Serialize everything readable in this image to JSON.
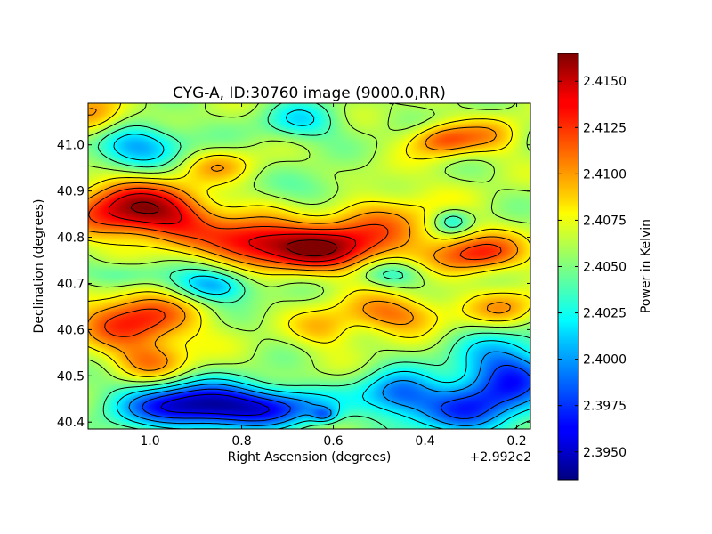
{
  "chart_data": {
    "type": "heatmap",
    "title": "CYG-A, ID:30760 image (9000.0,RR)",
    "xlabel": "Right Ascension (degrees)",
    "ylabel": "Declination (degrees)",
    "x_offset_label": "+2.992e2",
    "xlim": [
      1.135,
      0.17
    ],
    "ylim": [
      40.385,
      41.09
    ],
    "x_ticks": [
      1.0,
      0.8,
      0.6,
      0.4,
      0.2
    ],
    "x_tick_labels": [
      "1.0",
      "0.8",
      "0.6",
      "0.4",
      "0.2"
    ],
    "y_ticks": [
      40.4,
      40.5,
      40.6,
      40.7,
      40.8,
      40.9,
      41.0
    ],
    "y_tick_labels": [
      "40.4",
      "40.5",
      "40.6",
      "40.7",
      "40.8",
      "40.9",
      "41.0"
    ],
    "colormap": "jet",
    "contours": true,
    "colorbar": {
      "label": "Power in Kelvin",
      "range": [
        2.3935,
        2.4165
      ],
      "ticks": [
        2.395,
        2.3975,
        2.4,
        2.4025,
        2.405,
        2.4075,
        2.41,
        2.4125,
        2.415
      ],
      "tick_labels": [
        "2.3950",
        "2.3975",
        "2.4000",
        "2.4025",
        "2.4050",
        "2.4075",
        "2.4100",
        "2.4125",
        "2.4150"
      ]
    },
    "base_value": 2.406,
    "features": [
      {
        "x": 1.05,
        "y": 40.86,
        "amp": 0.0085,
        "sx": 0.09,
        "sy": 0.045
      },
      {
        "x": 0.93,
        "y": 40.845,
        "amp": 0.0045,
        "sx": 0.07,
        "sy": 0.04
      },
      {
        "x": 0.64,
        "y": 40.775,
        "amp": 0.008,
        "sx": 0.1,
        "sy": 0.035
      },
      {
        "x": 0.79,
        "y": 40.79,
        "amp": 0.006,
        "sx": 0.07,
        "sy": 0.035
      },
      {
        "x": 0.28,
        "y": 40.765,
        "amp": 0.0065,
        "sx": 0.07,
        "sy": 0.03
      },
      {
        "x": 1.03,
        "y": 40.62,
        "amp": 0.007,
        "sx": 0.09,
        "sy": 0.045
      },
      {
        "x": 0.47,
        "y": 40.635,
        "amp": 0.005,
        "sx": 0.08,
        "sy": 0.03
      },
      {
        "x": 0.22,
        "y": 40.645,
        "amp": 0.004,
        "sx": 0.06,
        "sy": 0.03
      },
      {
        "x": 0.62,
        "y": 40.6,
        "amp": 0.003,
        "sx": 0.05,
        "sy": 0.03
      },
      {
        "x": 1.0,
        "y": 40.53,
        "amp": 0.004,
        "sx": 0.06,
        "sy": 0.03
      },
      {
        "x": 0.52,
        "y": 40.83,
        "amp": 0.004,
        "sx": 0.12,
        "sy": 0.06
      },
      {
        "x": 0.85,
        "y": 40.955,
        "amp": 0.003,
        "sx": 0.06,
        "sy": 0.025
      },
      {
        "x": 1.12,
        "y": 41.06,
        "amp": 0.0055,
        "sx": 0.05,
        "sy": 0.035
      },
      {
        "x": 0.36,
        "y": 41.01,
        "amp": 0.0055,
        "sx": 0.05,
        "sy": 0.025
      },
      {
        "x": 0.25,
        "y": 41.02,
        "amp": 0.003,
        "sx": 0.05,
        "sy": 0.03
      },
      {
        "x": 0.89,
        "y": 40.435,
        "amp": -0.012,
        "sx": 0.12,
        "sy": 0.035
      },
      {
        "x": 0.7,
        "y": 40.43,
        "amp": -0.005,
        "sx": 0.08,
        "sy": 0.03
      },
      {
        "x": 0.46,
        "y": 40.46,
        "amp": -0.007,
        "sx": 0.06,
        "sy": 0.035
      },
      {
        "x": 0.22,
        "y": 40.5,
        "amp": -0.0085,
        "sx": 0.08,
        "sy": 0.06
      },
      {
        "x": 0.32,
        "y": 40.42,
        "amp": -0.006,
        "sx": 0.08,
        "sy": 0.04
      },
      {
        "x": 0.86,
        "y": 40.695,
        "amp": -0.006,
        "sx": 0.06,
        "sy": 0.025
      },
      {
        "x": 0.47,
        "y": 40.72,
        "amp": -0.0035,
        "sx": 0.05,
        "sy": 0.02
      },
      {
        "x": 1.04,
        "y": 41.0,
        "amp": -0.006,
        "sx": 0.08,
        "sy": 0.035
      },
      {
        "x": 0.67,
        "y": 41.05,
        "amp": -0.004,
        "sx": 0.06,
        "sy": 0.03
      },
      {
        "x": 0.34,
        "y": 40.835,
        "amp": -0.004,
        "sx": 0.03,
        "sy": 0.02
      },
      {
        "x": 0.62,
        "y": 40.9,
        "amp": -0.003,
        "sx": 0.07,
        "sy": 0.03
      },
      {
        "x": 1.06,
        "y": 40.72,
        "amp": -0.003,
        "sx": 0.06,
        "sy": 0.02
      },
      {
        "x": 0.62,
        "y": 40.415,
        "amp": -0.004,
        "sx": 0.02,
        "sy": 0.012
      }
    ]
  }
}
